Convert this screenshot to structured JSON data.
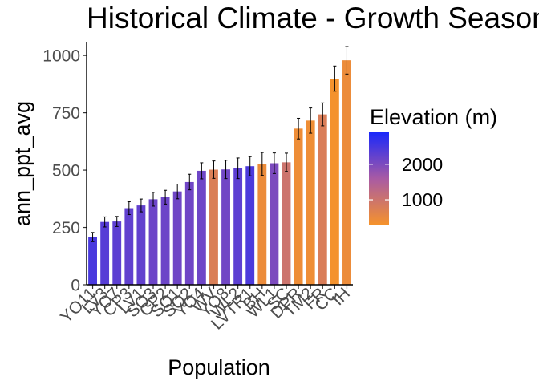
{
  "chart_data": {
    "type": "bar",
    "title": "Historical Climate - Growth Season",
    "xlabel": "Population",
    "ylabel": "ann_ppt_avg",
    "ylim": [
      0,
      1060
    ],
    "yticks": [
      0,
      250,
      500,
      750,
      1000
    ],
    "error_bars": true,
    "grid": false,
    "legend": {
      "title": "Elevation (m)",
      "placement": "right",
      "ticks": [
        2000,
        1000
      ],
      "color_low": "#F5922C",
      "color_mid": "#A85AA4",
      "color_high": "#1A28FA",
      "range": [
        300,
        2900
      ]
    },
    "categories": [
      "YO11",
      "LV3",
      "YO7",
      "CP3",
      "LV1",
      "SQ3",
      "CP2",
      "SQ1",
      "SQ2",
      "YO4",
      "WV",
      "YO8",
      "WL2",
      "LVTR1",
      "BH",
      "WL1",
      "SC",
      "DPR",
      "TM2",
      "FR",
      "CC",
      "IH"
    ],
    "values": [
      208,
      274,
      276,
      334,
      346,
      373,
      382,
      407,
      448,
      497,
      502,
      503,
      508,
      517,
      527,
      530,
      534,
      681,
      716,
      743,
      899,
      979
    ],
    "errors": [
      20,
      22,
      22,
      28,
      28,
      30,
      30,
      32,
      34,
      35,
      38,
      40,
      45,
      42,
      50,
      45,
      40,
      45,
      55,
      50,
      55,
      60
    ],
    "elevation": [
      2470,
      2350,
      2300,
      2250,
      2240,
      2150,
      2150,
      2120,
      2110,
      2130,
      750,
      2100,
      2300,
      2440,
      450,
      2000,
      1000,
      420,
      400,
      780,
      310,
      450
    ]
  }
}
